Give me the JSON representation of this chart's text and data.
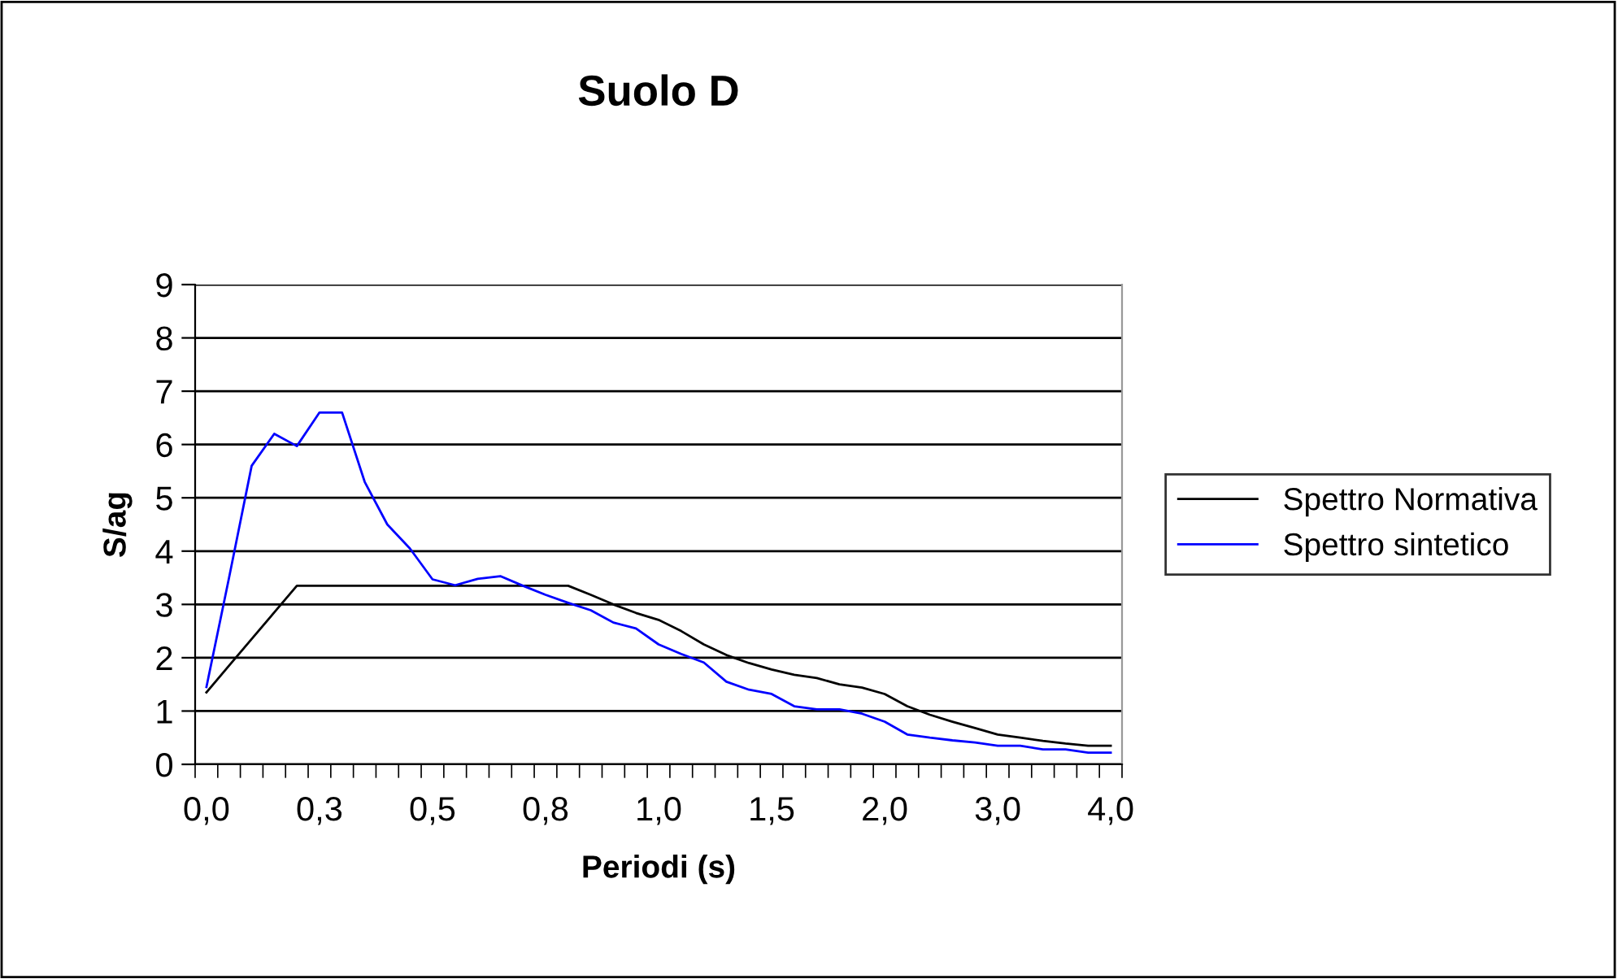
{
  "chart_data": {
    "type": "line",
    "title": "Suolo D",
    "xlabel": "Periodi (s)",
    "ylabel": "S/ag",
    "categories": [
      "0,0",
      null,
      null,
      null,
      null,
      "0,3",
      null,
      null,
      null,
      null,
      "0,5",
      null,
      null,
      null,
      null,
      "0,8",
      null,
      null,
      null,
      null,
      "1,0",
      null,
      null,
      null,
      null,
      "1,5",
      null,
      null,
      null,
      null,
      "2,0",
      null,
      null,
      null,
      null,
      "3,0",
      null,
      null,
      null,
      null,
      "4,0"
    ],
    "series": [
      {
        "name": "Spettro Normativa",
        "color": "#000000",
        "values": [
          1.35,
          1.85,
          2.35,
          2.85,
          3.35,
          3.35,
          3.35,
          3.35,
          3.35,
          3.35,
          3.35,
          3.35,
          3.35,
          3.35,
          3.35,
          3.35,
          3.35,
          3.18,
          3.0,
          2.84,
          2.71,
          2.5,
          2.25,
          2.05,
          1.9,
          1.78,
          1.68,
          1.62,
          1.5,
          1.44,
          1.32,
          1.09,
          0.93,
          0.8,
          0.68,
          0.56,
          0.5,
          0.44,
          0.39,
          0.35,
          0.35
        ]
      },
      {
        "name": "Spettro sintetico",
        "color": "#0000ff",
        "values": [
          1.45,
          3.5,
          5.6,
          6.2,
          5.97,
          6.6,
          6.6,
          5.3,
          4.5,
          4.05,
          3.47,
          3.36,
          3.48,
          3.53,
          3.35,
          3.18,
          3.03,
          2.89,
          2.66,
          2.55,
          2.25,
          2.07,
          1.91,
          1.55,
          1.4,
          1.32,
          1.09,
          1.03,
          1.03,
          0.95,
          0.8,
          0.56,
          0.5,
          0.45,
          0.41,
          0.35,
          0.35,
          0.28,
          0.28,
          0.22,
          0.22
        ]
      }
    ],
    "ylim": [
      0,
      9
    ],
    "yticks": [
      0,
      1,
      2,
      3,
      4,
      5,
      6,
      7,
      8,
      9
    ],
    "grid": "y",
    "legend": "right",
    "marker": "none",
    "line_style": "solid"
  }
}
